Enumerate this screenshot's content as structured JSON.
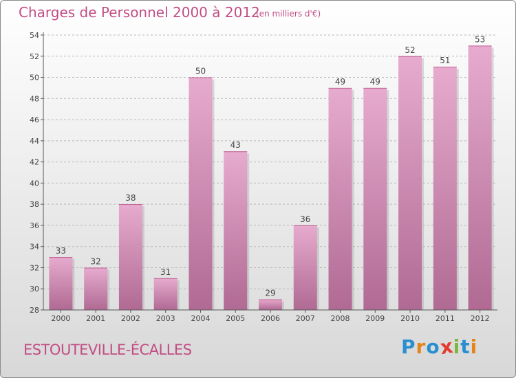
{
  "title": "Charges de Personnel 2000 à 2012",
  "subtitle": "(en milliers d'€)",
  "commune": "ESTOUTEVILLE-ÉCALLES",
  "logo": {
    "letters": [
      "P",
      "r",
      "o",
      "x",
      "i",
      "t",
      "i"
    ],
    "colors": [
      "#2a8fd0",
      "#e3851b",
      "#2a8fd0",
      "#e53b2f",
      "#7cb83b",
      "#2a8fd0",
      "#e3851b"
    ]
  },
  "colors": {
    "accent": "#c24d84",
    "bar_top": "#e7abcf",
    "bar_bottom": "#b06a93",
    "grid": "#b8b8b8"
  },
  "chart_data": {
    "type": "bar",
    "categories": [
      "2000",
      "2001",
      "2002",
      "2003",
      "2004",
      "2005",
      "2006",
      "2007",
      "2008",
      "2009",
      "2010",
      "2011",
      "2012"
    ],
    "values": [
      33,
      32,
      38,
      31,
      50,
      43,
      29,
      36,
      49,
      49,
      52,
      51,
      53
    ],
    "title": "Charges de Personnel 2000 à 2012",
    "xlabel": "",
    "ylabel": "",
    "ylim": [
      28,
      54
    ],
    "yticks": [
      28,
      30,
      32,
      34,
      36,
      38,
      40,
      42,
      44,
      46,
      48,
      50,
      52,
      54
    ],
    "grid": true
  }
}
